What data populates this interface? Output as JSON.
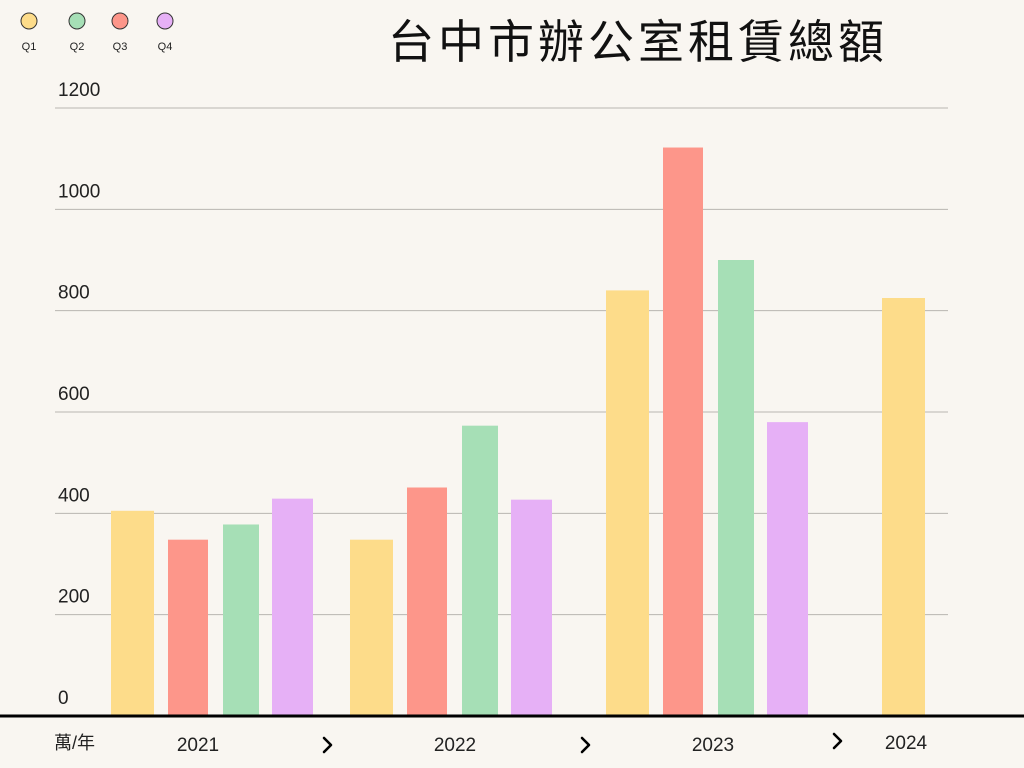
{
  "chart_data": {
    "type": "bar",
    "title": "台中市辦公室租賃總額",
    "ylabel": "萬/年",
    "ylim": [
      0,
      1200
    ],
    "yticks": [
      0,
      200,
      400,
      600,
      800,
      1000,
      1200
    ],
    "categories": [
      "2021",
      "2022",
      "2023",
      "2024"
    ],
    "series": [
      {
        "name": "Q1",
        "values": [
          405,
          348,
          840,
          825
        ],
        "color": "#fddc8a"
      },
      {
        "name": "Q3",
        "values": [
          348,
          451,
          1122,
          null
        ],
        "color": "#fd968a"
      },
      {
        "name": "Q2",
        "values": [
          378,
          573,
          900,
          null
        ],
        "color": "#a6dfb6"
      },
      {
        "name": "Q4",
        "values": [
          429,
          427,
          580,
          null
        ],
        "color": "#e6b0f6"
      }
    ],
    "legend": {
      "position": "top-left",
      "items": [
        {
          "label": "Q1",
          "color": "#fddc8a"
        },
        {
          "label": "Q2",
          "color": "#a6dfb6"
        },
        {
          "label": "Q3",
          "color": "#fd968a"
        },
        {
          "label": "Q4",
          "color": "#e6b0f6"
        }
      ]
    },
    "grid": true
  }
}
